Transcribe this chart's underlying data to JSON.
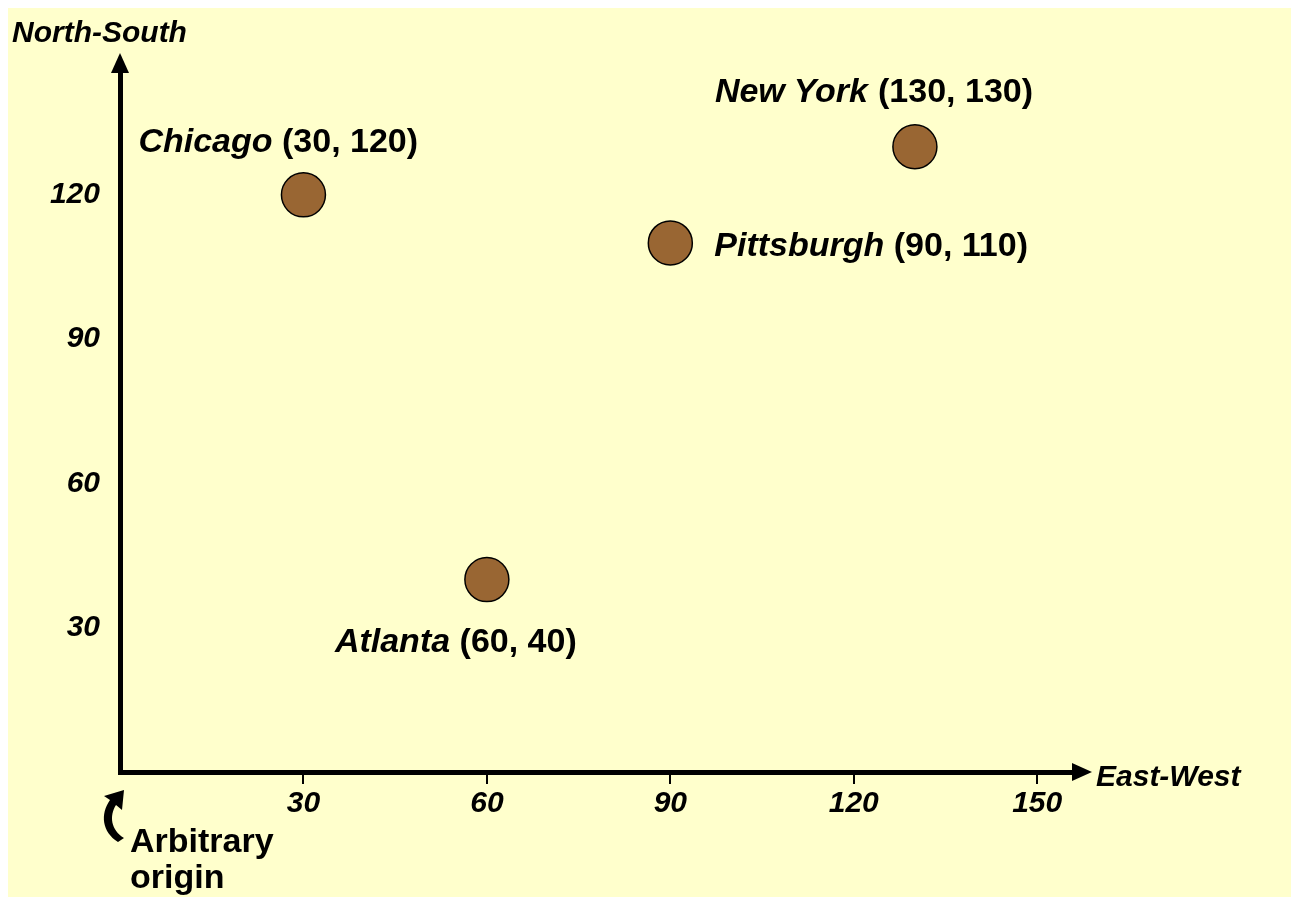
{
  "chart_data": {
    "type": "scatter",
    "xlabel": "East-West",
    "ylabel": "North-South",
    "xlim": [
      0,
      157
    ],
    "ylim": [
      0,
      147
    ],
    "xticks": [
      30,
      60,
      90,
      120,
      150
    ],
    "yticks": [
      30,
      60,
      90,
      120
    ],
    "marker": "circle",
    "series": [
      {
        "color": "#996633",
        "x": [
          30,
          130,
          90,
          60
        ],
        "values": [
          120,
          130,
          110,
          40
        ]
      }
    ],
    "annotations": [
      {
        "text": "Chicago (30, 120)",
        "x": 30,
        "y": 120
      },
      {
        "text": "New York (130, 130)",
        "x": 130,
        "y": 130
      },
      {
        "text": "Pittsburgh (90, 110)",
        "x": 90,
        "y": 110
      },
      {
        "text": "Atlanta (60, 40)",
        "x": 60,
        "y": 40
      },
      "Arbitrary origin"
    ]
  }
}
